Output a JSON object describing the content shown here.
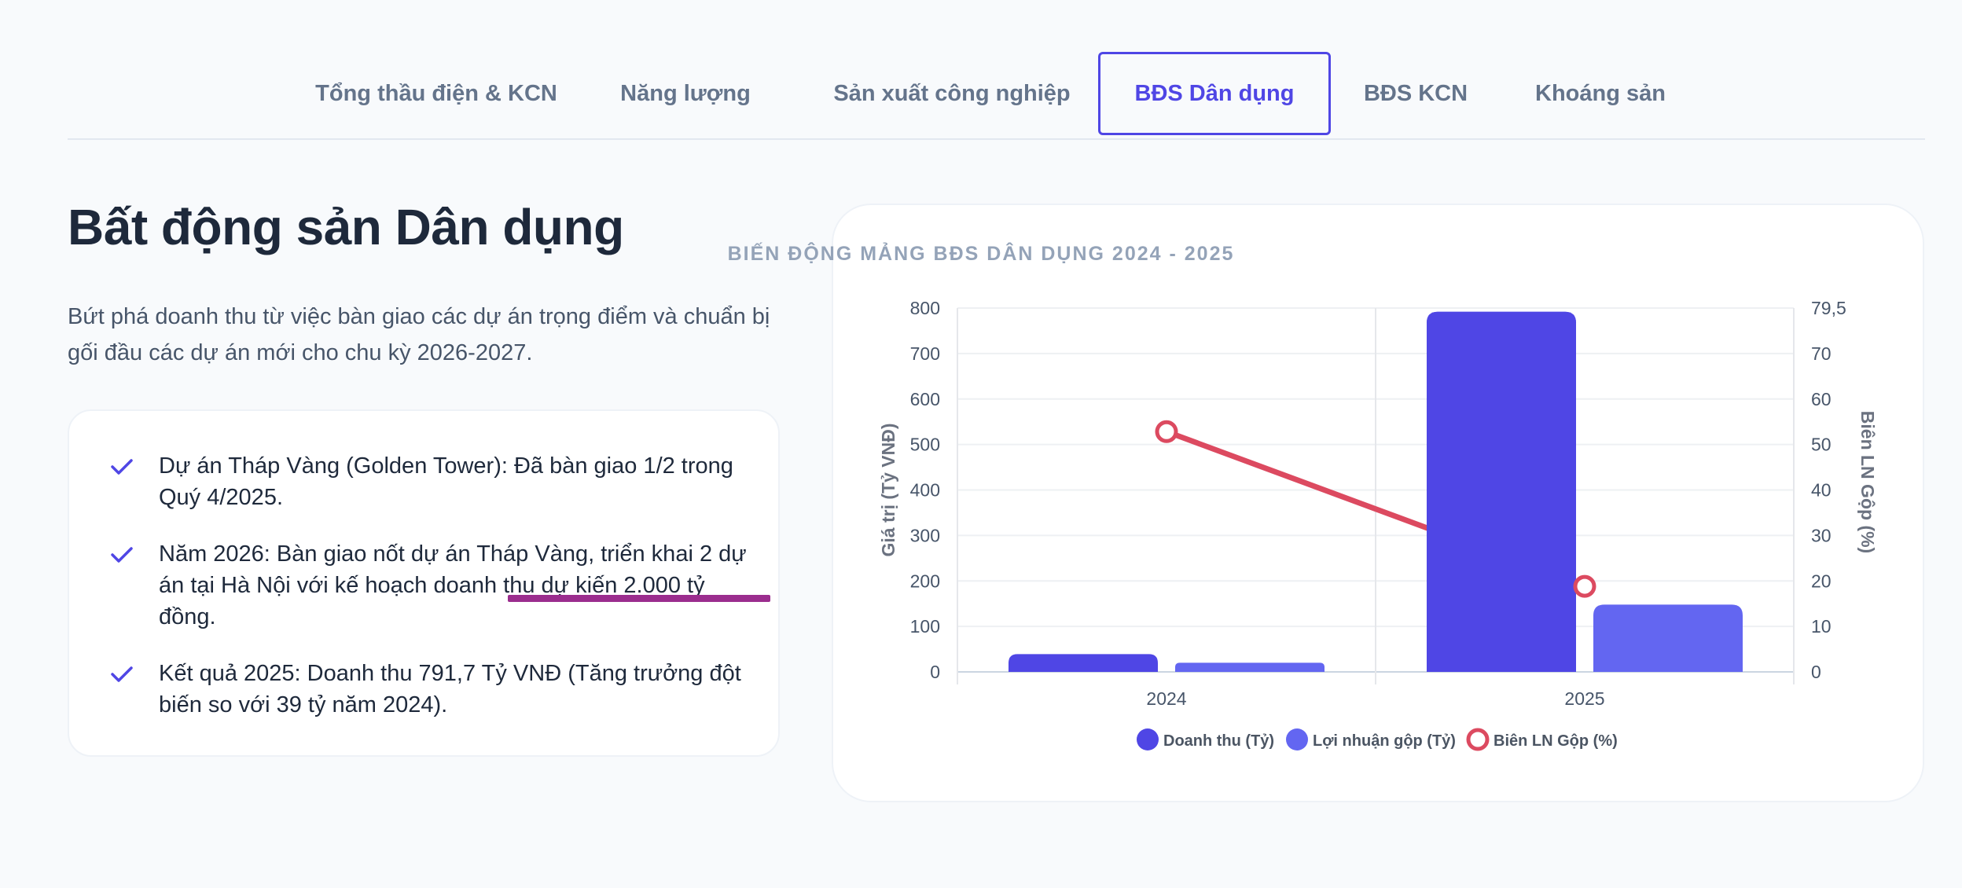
{
  "tabs": [
    {
      "label": "Tổng thầu điện & KCN",
      "active": false
    },
    {
      "label": "Năng lượng",
      "active": false
    },
    {
      "label": "Sản xuất công nghiệp",
      "active": false
    },
    {
      "label": "BĐS Dân dụng",
      "active": true
    },
    {
      "label": "BĐS KCN",
      "active": false
    },
    {
      "label": "Khoáng sản",
      "active": false
    }
  ],
  "section": {
    "title": "Bất động sản Dân dụng",
    "intro": "Bứt phá doanh thu từ việc bàn giao các dự án trọng điểm và chuẩn bị gối đầu các dự án mới cho chu kỳ 2026-2027.",
    "highlights": [
      "Dự án Tháp Vàng (Golden Tower): Đã bàn giao 1/2 trong Quý 4/2025.",
      "Năm 2026: Bàn giao nốt dự án Tháp Vàng, triển khai 2 dự án tại Hà Nội với kế hoạch doanh thu dự kiến 2.000 tỷ đồng.",
      "Kết quả 2025: Doanh thu 791,7 Tỷ VNĐ (Tăng trưởng đột biến so với 39 tỷ năm 2024)."
    ]
  },
  "colors": {
    "accent": "#4f46e5",
    "revenue": "#4f46e5",
    "gross_profit": "#6366f1",
    "margin": "#dc4a60",
    "annotation": "#9b2d8e"
  },
  "chart_data": {
    "type": "bar",
    "title": "BIẾN ĐỘNG MẢNG BĐS DÂN DỤNG 2024 - 2025",
    "categories": [
      "2024",
      "2025"
    ],
    "series": [
      {
        "name": "Doanh thu (Tỷ)",
        "type": "bar",
        "axis": "left",
        "values": [
          39,
          791.7
        ]
      },
      {
        "name": "Lợi nhuận gộp (Tỷ)",
        "type": "bar",
        "axis": "left",
        "values": [
          20,
          148
        ]
      },
      {
        "name": "Biên LN Gộp (%)",
        "type": "line",
        "axis": "right",
        "values": [
          52.5,
          18.7
        ]
      }
    ],
    "ylabel": "Giá trị (Tỷ VNĐ)",
    "y2label": "Biên LN Gộp (%)",
    "ylim": [
      0,
      800
    ],
    "y2lim": [
      0,
      79.5
    ],
    "yticks": [
      "0",
      "100",
      "200",
      "300",
      "400",
      "500",
      "600",
      "700",
      "800"
    ],
    "y2ticks": [
      "0",
      "10",
      "20",
      "30",
      "40",
      "50",
      "60",
      "70",
      "79,5"
    ],
    "grid": true,
    "legend": "bottom"
  }
}
